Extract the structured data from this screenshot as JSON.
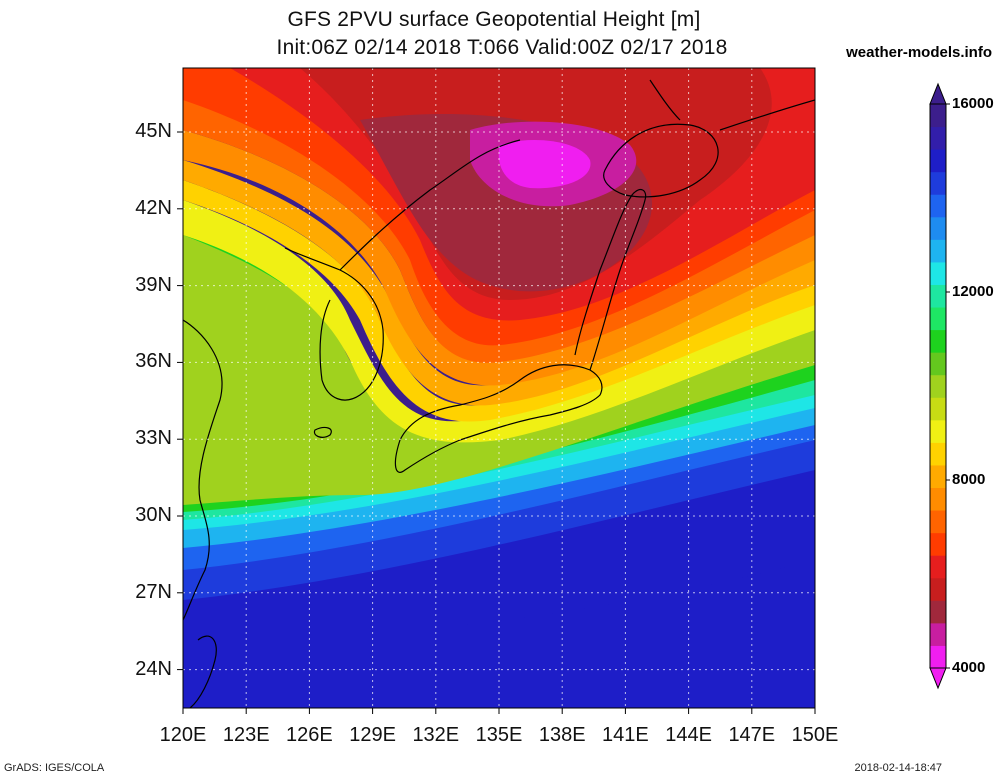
{
  "title_line1": "GFS 2PVU surface Geopotential Height [m]",
  "title_line2": "Init:06Z 02/14 2018 T:066 Valid:00Z 02/17 2018",
  "brand": "weather-models.info",
  "map": {
    "lon_range": [
      120,
      150
    ],
    "lat_range": [
      22.5,
      47.5
    ],
    "lat_labels": [
      {
        "lat": 45,
        "text": "45N"
      },
      {
        "lat": 42,
        "text": "42N"
      },
      {
        "lat": 39,
        "text": "39N"
      },
      {
        "lat": 36,
        "text": "36N"
      },
      {
        "lat": 33,
        "text": "33N"
      },
      {
        "lat": 30,
        "text": "30N"
      },
      {
        "lat": 27,
        "text": "27N"
      },
      {
        "lat": 24,
        "text": "24N"
      }
    ],
    "lon_labels": [
      {
        "lon": 120,
        "text": "120E"
      },
      {
        "lon": 123,
        "text": "123E"
      },
      {
        "lon": 126,
        "text": "126E"
      },
      {
        "lon": 129,
        "text": "129E"
      },
      {
        "lon": 132,
        "text": "132E"
      },
      {
        "lon": 135,
        "text": "135E"
      },
      {
        "lon": 138,
        "text": "138E"
      },
      {
        "lon": 141,
        "text": "141E"
      },
      {
        "lon": 144,
        "text": "144E"
      },
      {
        "lon": 147,
        "text": "147E"
      },
      {
        "lon": 150,
        "text": "150E"
      }
    ]
  },
  "colorbar": {
    "colors": [
      "#f01ef0",
      "#c81ea0",
      "#a0283c",
      "#c81e1e",
      "#e61e1e",
      "#ff3c00",
      "#ff6400",
      "#ff8c00",
      "#ffaa00",
      "#ffd200",
      "#f0f014",
      "#c8dc14",
      "#a0d21e",
      "#64c81e",
      "#1ed21e",
      "#1ee664",
      "#1ee6a0",
      "#1ee6e6",
      "#1eb4f0",
      "#1e8cf0",
      "#1e64f0",
      "#1e3cdc",
      "#1e1ec8",
      "#321eaa",
      "#3c1e8c"
    ],
    "labels": [
      {
        "value": 4000,
        "text": "4000"
      },
      {
        "value": 8000,
        "text": "8000"
      },
      {
        "value": 12000,
        "text": "12000"
      },
      {
        "value": 16000,
        "text": "16000"
      }
    ]
  },
  "footer_left": "GrADS: IGES/COLA",
  "footer_right": "2018-02-14-18:47"
}
